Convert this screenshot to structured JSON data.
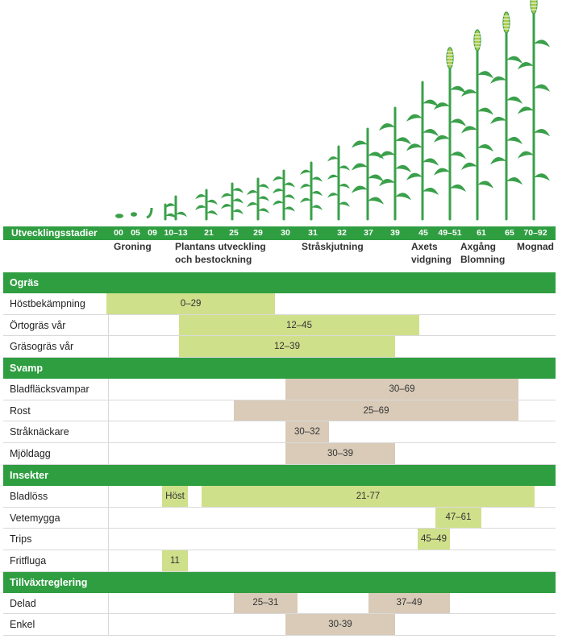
{
  "colors": {
    "brand_green": "#2f9e41",
    "weed_bar": "#cfe08b",
    "insect_bar": "#cfe08b",
    "fungus_bar": "#d9cbb8",
    "growth_bar": "#d9cbb8",
    "plant": "#3aa04a"
  },
  "stage_bar": {
    "title": "Utvecklingsstadier",
    "codes": [
      "00",
      "05",
      "09",
      "10–13",
      "21",
      "25",
      "29",
      "30",
      "31",
      "32",
      "37",
      "39",
      "45",
      "49–51",
      "61",
      "65",
      "70–92"
    ]
  },
  "phases": [
    {
      "id": "groning",
      "lines": [
        "Groning"
      ]
    },
    {
      "id": "plantans",
      "lines": [
        "Plantans utveckling",
        "och bestockning"
      ]
    },
    {
      "id": "strask",
      "lines": [
        "Stråskjutning"
      ]
    },
    {
      "id": "axets",
      "lines": [
        "Axets",
        "vidgning"
      ]
    },
    {
      "id": "axgang",
      "lines": [
        "Axgång",
        "Blomning"
      ]
    },
    {
      "id": "mognad",
      "lines": [
        "Mognad"
      ]
    }
  ],
  "chart_data": {
    "type": "table",
    "x_axis_codes": [
      "00",
      "05",
      "09",
      "10–13",
      "21",
      "25",
      "29",
      "30",
      "31",
      "32",
      "37",
      "39",
      "45",
      "49–51",
      "61",
      "65",
      "70–92"
    ],
    "sections": [
      {
        "title": "Ogräs",
        "kind": "weed",
        "rows": [
          {
            "label": "Höstbekämpning",
            "bars": [
              {
                "text": "0–29",
                "from": 0,
                "to": 29
              }
            ]
          },
          {
            "label": "Örtogräs vår",
            "bars": [
              {
                "text": "12–45",
                "from": 12,
                "to": 45
              }
            ]
          },
          {
            "label": "Gräsogräs vår",
            "bars": [
              {
                "text": "12–39",
                "from": 12,
                "to": 39
              }
            ]
          }
        ]
      },
      {
        "title": "Svamp",
        "kind": "fungus",
        "rows": [
          {
            "label": "Bladfläcksvampar",
            "bars": [
              {
                "text": "30–69",
                "from": 30,
                "to": 69
              }
            ]
          },
          {
            "label": "Rost",
            "bars": [
              {
                "text": "25–69",
                "from": 25,
                "to": 69
              }
            ]
          },
          {
            "label": "Stråknäckare",
            "bars": [
              {
                "text": "30–32",
                "from": 30,
                "to": 32
              }
            ]
          },
          {
            "label": "Mjöldagg",
            "bars": [
              {
                "text": "30–39",
                "from": 30,
                "to": 39
              }
            ]
          }
        ]
      },
      {
        "title": "Insekter",
        "kind": "insect",
        "rows": [
          {
            "label": "Bladlöss",
            "bars": [
              {
                "text": "Höst",
                "from": 11,
                "to": 15
              },
              {
                "text": "21-77",
                "from": 21,
                "to": 77
              }
            ]
          },
          {
            "label": "Vetemygga",
            "bars": [
              {
                "text": "47–61",
                "from": 47,
                "to": 61
              }
            ]
          },
          {
            "label": "Trips",
            "bars": [
              {
                "text": "45–49",
                "from": 45,
                "to": 49
              }
            ]
          },
          {
            "label": "Fritfluga",
            "bars": [
              {
                "text": "11",
                "from": 11,
                "to": 12
              }
            ]
          }
        ]
      },
      {
        "title": "Tillväxtreglering",
        "kind": "growth",
        "rows": [
          {
            "label": "Delad",
            "bars": [
              {
                "text": "25–31",
                "from": 25,
                "to": 31
              },
              {
                "text": "37–49",
                "from": 37,
                "to": 49
              }
            ]
          },
          {
            "label": "Enkel",
            "bars": [
              {
                "text": "30-39",
                "from": 30,
                "to": 39
              }
            ]
          }
        ]
      }
    ]
  }
}
